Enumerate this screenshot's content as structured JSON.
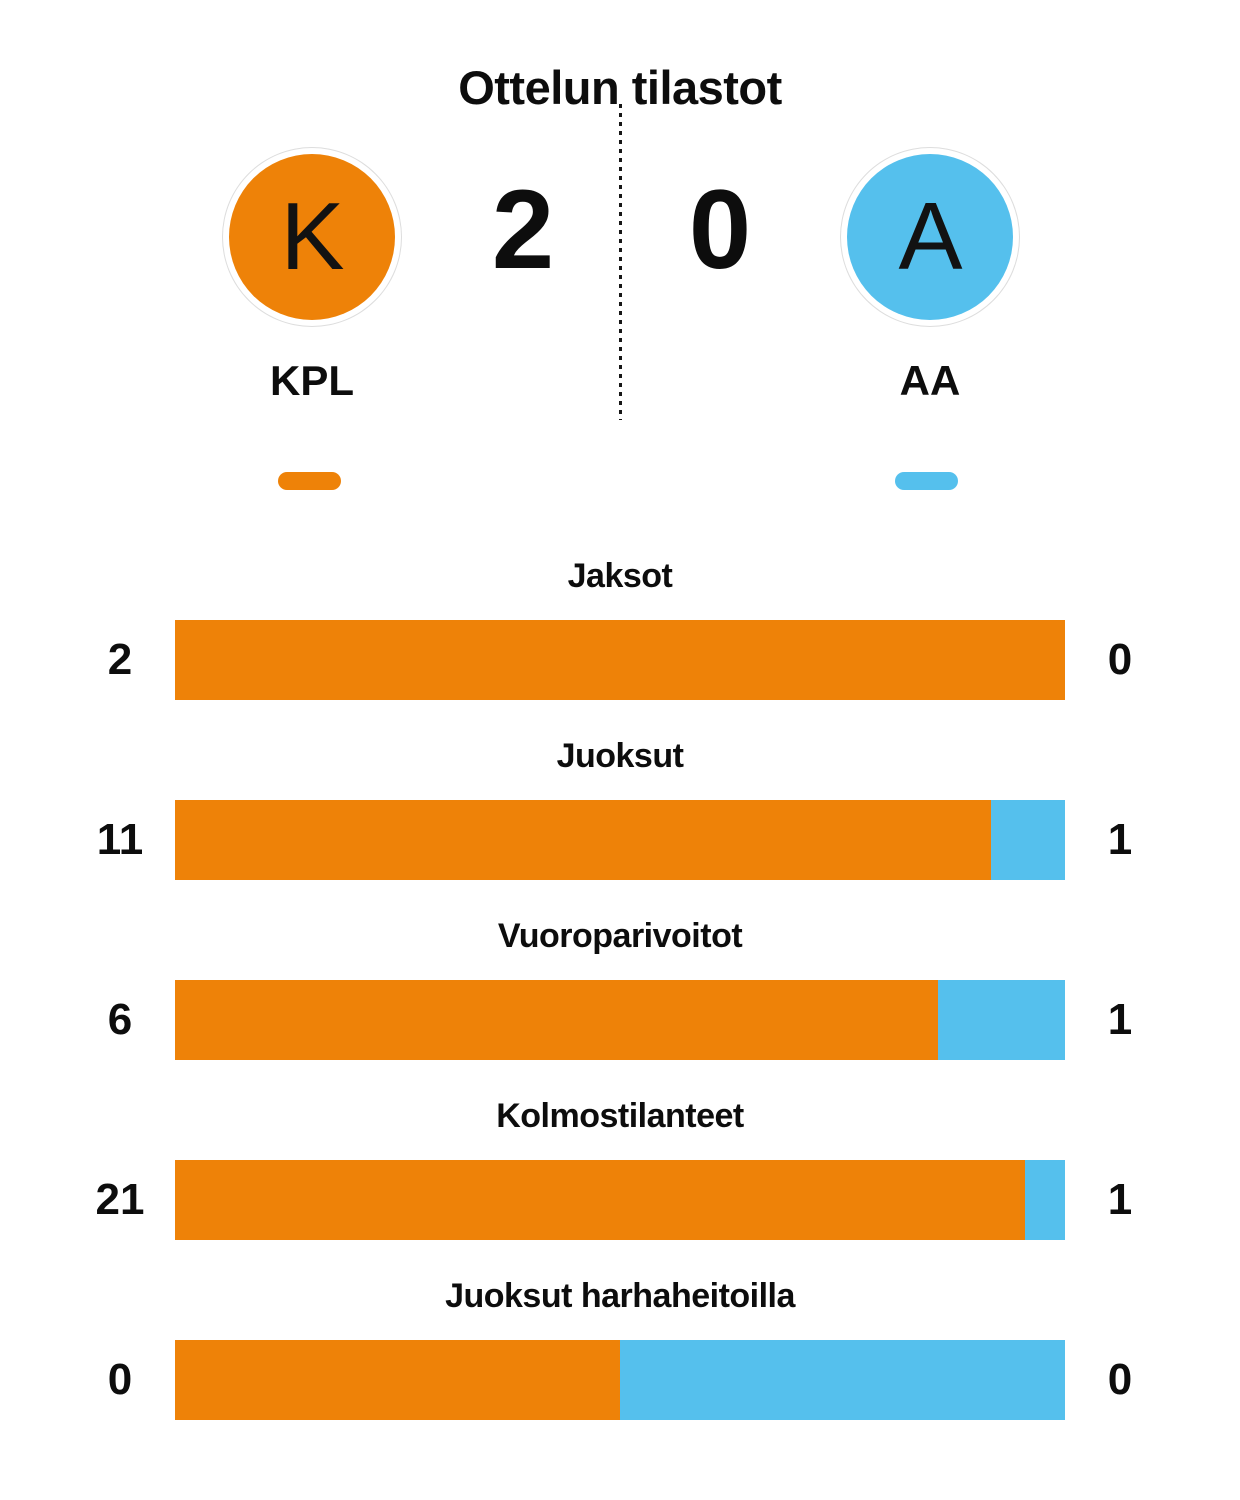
{
  "title": "Ottelun tilastot",
  "teams": {
    "home": {
      "initial": "K",
      "name": "KPL",
      "score": "2",
      "color": "#ee8208"
    },
    "away": {
      "initial": "A",
      "name": "AA",
      "score": "0",
      "color": "#55c0ed"
    }
  },
  "stats": [
    {
      "label": "Jaksot",
      "home": 2,
      "away": 0
    },
    {
      "label": "Juoksut",
      "home": 11,
      "away": 1
    },
    {
      "label": "Vuoroparivoitot",
      "home": 6,
      "away": 1
    },
    {
      "label": "Kolmostilanteet",
      "home": 21,
      "away": 1
    },
    {
      "label": "Juoksut harhaheitoilla",
      "home": 0,
      "away": 0
    }
  ],
  "chart_data": {
    "type": "bar",
    "title": "Ottelun tilastot",
    "layout": "horizontal-stacked-proportional",
    "teams": [
      "KPL",
      "AA"
    ],
    "score": {
      "KPL": 2,
      "AA": 0
    },
    "categories": [
      "Jaksot",
      "Juoksut",
      "Vuoroparivoitot",
      "Kolmostilanteet",
      "Juoksut harhaheitoilla"
    ],
    "series": [
      {
        "name": "KPL",
        "color": "#ee8208",
        "values": [
          2,
          11,
          6,
          21,
          0
        ]
      },
      {
        "name": "AA",
        "color": "#55c0ed",
        "values": [
          0,
          1,
          1,
          1,
          0
        ]
      }
    ],
    "note": "each bar shows home share vs away share of the stat; 0-0 renders as 50/50"
  }
}
